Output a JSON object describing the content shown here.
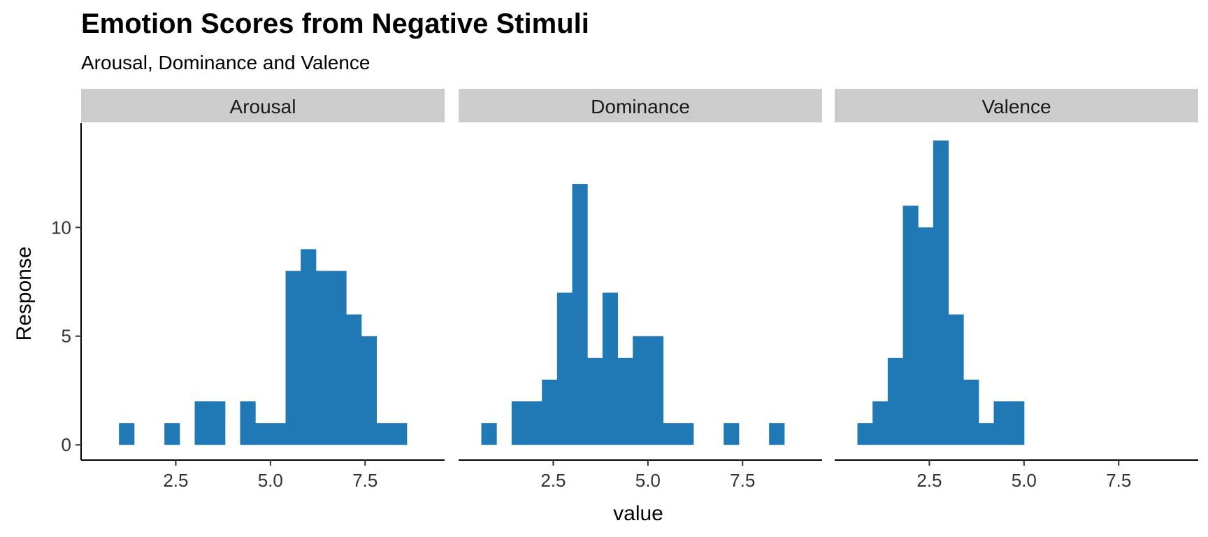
{
  "chart_data": {
    "type": "bar",
    "title": "Emotion Scores from Negative Stimuli",
    "subtitle": "Arousal, Dominance and Valence",
    "xlabel": "value",
    "ylabel": "Response",
    "xlim": [
      0.0,
      9.6
    ],
    "ylim": [
      -0.7,
      14.8
    ],
    "x_ticks": [
      "2.5",
      "5.0",
      "7.5"
    ],
    "x_tick_values": [
      2.5,
      5.0,
      7.5
    ],
    "y_ticks": [
      "0",
      "5",
      "10"
    ],
    "y_tick_values": [
      0,
      5,
      10
    ],
    "bin_width": 0.4,
    "grid": false,
    "bar_color": "#2078b4",
    "strip_color": "#cccccc",
    "facets": [
      {
        "label": "Arousal",
        "bins": [
          {
            "x0": 1.0,
            "count": 1
          },
          {
            "x0": 2.2,
            "count": 1
          },
          {
            "x0": 3.0,
            "count": 2
          },
          {
            "x0": 3.4,
            "count": 2
          },
          {
            "x0": 4.2,
            "count": 2
          },
          {
            "x0": 4.6,
            "count": 1
          },
          {
            "x0": 5.0,
            "count": 1
          },
          {
            "x0": 5.4,
            "count": 8
          },
          {
            "x0": 5.8,
            "count": 9
          },
          {
            "x0": 6.2,
            "count": 8
          },
          {
            "x0": 6.6,
            "count": 8
          },
          {
            "x0": 7.0,
            "count": 6
          },
          {
            "x0": 7.4,
            "count": 5
          },
          {
            "x0": 7.8,
            "count": 1
          },
          {
            "x0": 8.2,
            "count": 1
          }
        ]
      },
      {
        "label": "Dominance",
        "bins": [
          {
            "x0": 0.6,
            "count": 1
          },
          {
            "x0": 1.4,
            "count": 2
          },
          {
            "x0": 1.8,
            "count": 2
          },
          {
            "x0": 2.2,
            "count": 3
          },
          {
            "x0": 2.6,
            "count": 7
          },
          {
            "x0": 3.0,
            "count": 12
          },
          {
            "x0": 3.4,
            "count": 4
          },
          {
            "x0": 3.8,
            "count": 7
          },
          {
            "x0": 4.2,
            "count": 4
          },
          {
            "x0": 4.6,
            "count": 5
          },
          {
            "x0": 5.0,
            "count": 5
          },
          {
            "x0": 5.4,
            "count": 1
          },
          {
            "x0": 5.8,
            "count": 1
          },
          {
            "x0": 7.0,
            "count": 1
          },
          {
            "x0": 8.2,
            "count": 1
          }
        ]
      },
      {
        "label": "Valence",
        "bins": [
          {
            "x0": 0.6,
            "count": 1
          },
          {
            "x0": 1.0,
            "count": 2
          },
          {
            "x0": 1.4,
            "count": 4
          },
          {
            "x0": 1.8,
            "count": 11
          },
          {
            "x0": 2.2,
            "count": 10
          },
          {
            "x0": 2.6,
            "count": 14
          },
          {
            "x0": 3.0,
            "count": 6
          },
          {
            "x0": 3.4,
            "count": 3
          },
          {
            "x0": 3.8,
            "count": 1
          },
          {
            "x0": 4.2,
            "count": 2
          },
          {
            "x0": 4.6,
            "count": 2
          }
        ]
      }
    ]
  }
}
